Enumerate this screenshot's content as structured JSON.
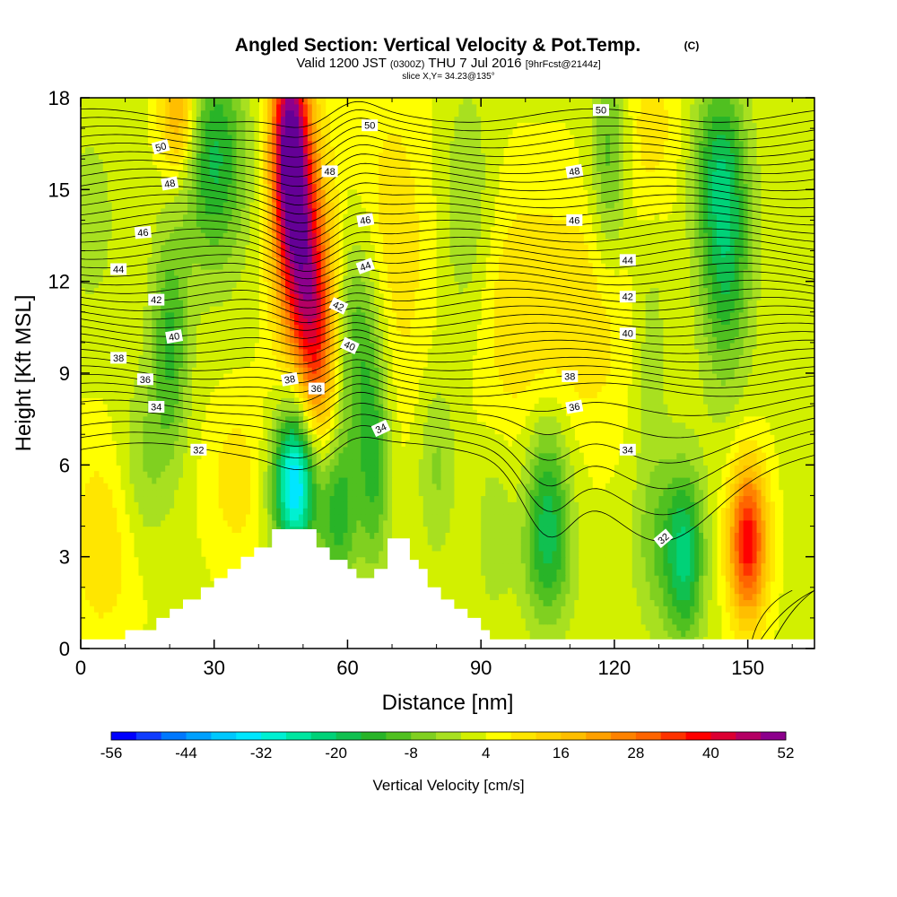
{
  "header": {
    "title": "Angled Section: Vertical Velocity & Pot.Temp.",
    "copyright": "(C)",
    "valid_prefix": "Valid 1200 JST",
    "utc": "(0300Z)",
    "valid_date": "THU 7 Jul 2016",
    "forecast": "[9hrFcst@2144z]",
    "slice": "slice X,Y= 34.23@135°"
  },
  "chart_data": {
    "type": "heatmap",
    "xlabel": "Distance [nm]",
    "ylabel": "Height [Kft MSL]",
    "xlim": [
      0,
      165
    ],
    "ylim": [
      0,
      18
    ],
    "xticks": [
      "0",
      "30",
      "60",
      "90",
      "120",
      "150"
    ],
    "yticks": [
      "0",
      "3",
      "6",
      "9",
      "12",
      "15",
      "18"
    ],
    "colorbar": {
      "label": "Vertical Velocity [cm/s]",
      "ticks": [
        "-56",
        "-44",
        "-32",
        "-20",
        "-8",
        "4",
        "16",
        "28",
        "40",
        "52"
      ],
      "range": [
        -56,
        52
      ],
      "step": 4,
      "colors": [
        "#0000ff",
        "#0f3cff",
        "#0078ff",
        "#00a0ff",
        "#00c8ff",
        "#00e6ff",
        "#00f0d2",
        "#00e6a0",
        "#00d278",
        "#10c050",
        "#28b428",
        "#50c020",
        "#80d020",
        "#a8e020",
        "#d2f000",
        "#ffff00",
        "#ffe600",
        "#ffd200",
        "#ffbe00",
        "#ffa000",
        "#ff8200",
        "#ff6400",
        "#ff3200",
        "#ff0000",
        "#dc0032",
        "#b40064",
        "#8c008c",
        "#640096"
      ]
    },
    "terrain": [
      [
        0,
        0.3
      ],
      [
        10,
        0.3
      ],
      [
        10,
        0.6
      ],
      [
        17,
        0.6
      ],
      [
        17,
        1.0
      ],
      [
        20,
        1.0
      ],
      [
        20,
        1.3
      ],
      [
        23,
        1.3
      ],
      [
        23,
        1.6
      ],
      [
        27,
        1.6
      ],
      [
        27,
        2.0
      ],
      [
        30,
        2.0
      ],
      [
        30,
        2.3
      ],
      [
        33,
        2.3
      ],
      [
        33,
        2.6
      ],
      [
        36,
        2.6
      ],
      [
        36,
        3.0
      ],
      [
        39,
        3.0
      ],
      [
        39,
        3.3
      ],
      [
        43,
        3.3
      ],
      [
        43,
        3.9
      ],
      [
        53,
        3.9
      ],
      [
        53,
        3.3
      ],
      [
        56,
        3.3
      ],
      [
        56,
        2.9
      ],
      [
        60,
        2.9
      ],
      [
        60,
        2.6
      ],
      [
        62,
        2.6
      ],
      [
        62,
        2.3
      ],
      [
        66,
        2.3
      ],
      [
        66,
        2.6
      ],
      [
        69,
        2.6
      ],
      [
        69,
        3.6
      ],
      [
        74,
        3.6
      ],
      [
        74,
        2.9
      ],
      [
        76,
        2.9
      ],
      [
        76,
        2.6
      ],
      [
        78,
        2.6
      ],
      [
        78,
        2.0
      ],
      [
        81,
        2.0
      ],
      [
        81,
        1.6
      ],
      [
        84,
        1.6
      ],
      [
        84,
        1.3
      ],
      [
        87,
        1.3
      ],
      [
        87,
        1.0
      ],
      [
        90,
        1.0
      ],
      [
        90,
        0.6
      ],
      [
        92,
        0.6
      ],
      [
        92,
        0.3
      ],
      [
        165,
        0.3
      ]
    ],
    "velocity_features": [
      {
        "x": 47,
        "y": 16.5,
        "value": 48,
        "sx": 3,
        "sy": 2.5
      },
      {
        "x": 50,
        "y": 12.5,
        "value": 36,
        "sx": 4,
        "sy": 3
      },
      {
        "x": 53,
        "y": 9.5,
        "value": 22,
        "sx": 3.5,
        "sy": 2.5
      },
      {
        "x": 22,
        "y": 17.5,
        "value": 20,
        "sx": 3,
        "sy": 1.5
      },
      {
        "x": 150,
        "y": 3.5,
        "value": 36,
        "sx": 3,
        "sy": 1.8
      },
      {
        "x": 70,
        "y": 13,
        "value": 8,
        "sx": 6,
        "sy": 4
      },
      {
        "x": 98,
        "y": 11,
        "value": 8,
        "sx": 8,
        "sy": 3
      },
      {
        "x": 115,
        "y": 11,
        "value": 7,
        "sx": 8,
        "sy": 3
      },
      {
        "x": 5,
        "y": 3.5,
        "value": 8,
        "sx": 6,
        "sy": 2.5
      },
      {
        "x": 35,
        "y": 5.5,
        "value": 7,
        "sx": 5,
        "sy": 2
      },
      {
        "x": 128,
        "y": 17,
        "value": 7,
        "sx": 5,
        "sy": 2
      },
      {
        "x": 48,
        "y": 5.3,
        "value": -34,
        "sx": 3.5,
        "sy": 1.6
      },
      {
        "x": 49,
        "y": 7.5,
        "value": -14,
        "sx": 3,
        "sy": 2.5
      },
      {
        "x": 58,
        "y": 4.5,
        "value": -18,
        "sx": 3,
        "sy": 1.8
      },
      {
        "x": 66,
        "y": 6,
        "value": -16,
        "sx": 2.5,
        "sy": 2.5
      },
      {
        "x": 62,
        "y": 10,
        "value": -16,
        "sx": 4,
        "sy": 2.5
      },
      {
        "x": 30,
        "y": 16,
        "value": -20,
        "sx": 5,
        "sy": 2.5
      },
      {
        "x": 20,
        "y": 10,
        "value": -16,
        "sx": 3,
        "sy": 2.5
      },
      {
        "x": 14,
        "y": 6,
        "value": -8,
        "sx": 4,
        "sy": 2
      },
      {
        "x": 105,
        "y": 5,
        "value": -18,
        "sx": 3.5,
        "sy": 2
      },
      {
        "x": 105,
        "y": 2.5,
        "value": -10,
        "sx": 4,
        "sy": 1.5
      },
      {
        "x": 136,
        "y": 3,
        "value": -22,
        "sx": 3,
        "sy": 2
      },
      {
        "x": 130,
        "y": 3.5,
        "value": -10,
        "sx": 4,
        "sy": 2
      },
      {
        "x": 145,
        "y": 13,
        "value": -20,
        "sx": 4,
        "sy": 3
      },
      {
        "x": 143,
        "y": 16,
        "value": -12,
        "sx": 4,
        "sy": 2
      },
      {
        "x": 119,
        "y": 16,
        "value": -14,
        "sx": 3,
        "sy": 2.5
      },
      {
        "x": 87,
        "y": 14,
        "value": -8,
        "sx": 4,
        "sy": 3
      },
      {
        "x": 80,
        "y": 6,
        "value": -8,
        "sx": 3,
        "sy": 2
      },
      {
        "x": 93,
        "y": 4,
        "value": -6,
        "sx": 3,
        "sy": 2
      },
      {
        "x": 2,
        "y": 14,
        "value": -6,
        "sx": 4,
        "sy": 2
      },
      {
        "x": 128,
        "y": 10,
        "value": -6,
        "sx": 3,
        "sy": 3
      }
    ],
    "theta_contours": {
      "start": 32,
      "end": 51,
      "step": 0.5
    },
    "theta_labels": [
      {
        "text": "50",
        "x": 18,
        "y": 16.4,
        "angle": -15
      },
      {
        "text": "48",
        "x": 20,
        "y": 15.2,
        "angle": -10
      },
      {
        "text": "46",
        "x": 14,
        "y": 13.6,
        "angle": -5
      },
      {
        "text": "44",
        "x": 8.5,
        "y": 12.4,
        "angle": 0
      },
      {
        "text": "42",
        "x": 17,
        "y": 11.4,
        "angle": 0
      },
      {
        "text": "40",
        "x": 21,
        "y": 10.2,
        "angle": -10
      },
      {
        "text": "38",
        "x": 8.5,
        "y": 9.5,
        "angle": 0
      },
      {
        "text": "36",
        "x": 14.5,
        "y": 8.8,
        "angle": 0
      },
      {
        "text": "34",
        "x": 17,
        "y": 7.9,
        "angle": 0
      },
      {
        "text": "32",
        "x": 26.5,
        "y": 6.5,
        "angle": 0
      },
      {
        "text": "38",
        "x": 47,
        "y": 8.8,
        "angle": -10
      },
      {
        "text": "36",
        "x": 53,
        "y": 8.5,
        "angle": 0
      },
      {
        "text": "34",
        "x": 67.5,
        "y": 7.2,
        "angle": -25
      },
      {
        "text": "40",
        "x": 60.5,
        "y": 9.9,
        "angle": 25
      },
      {
        "text": "42",
        "x": 58,
        "y": 11.2,
        "angle": 25
      },
      {
        "text": "44",
        "x": 64,
        "y": 12.5,
        "angle": -20
      },
      {
        "text": "46",
        "x": 64,
        "y": 14,
        "angle": -10
      },
      {
        "text": "48",
        "x": 56,
        "y": 15.6,
        "angle": 0
      },
      {
        "text": "50",
        "x": 65,
        "y": 17.1,
        "angle": 0
      },
      {
        "text": "50",
        "x": 117,
        "y": 17.6,
        "angle": 0
      },
      {
        "text": "48",
        "x": 111,
        "y": 15.6,
        "angle": -10
      },
      {
        "text": "46",
        "x": 111,
        "y": 14,
        "angle": 0
      },
      {
        "text": "44",
        "x": 123,
        "y": 12.7,
        "angle": 0
      },
      {
        "text": "42",
        "x": 123,
        "y": 11.5,
        "angle": 0
      },
      {
        "text": "40",
        "x": 123,
        "y": 10.3,
        "angle": 0
      },
      {
        "text": "38",
        "x": 110,
        "y": 8.9,
        "angle": 0
      },
      {
        "text": "36",
        "x": 111,
        "y": 7.9,
        "angle": -10
      },
      {
        "text": "34",
        "x": 123,
        "y": 6.5,
        "angle": 0
      },
      {
        "text": "32",
        "x": 131,
        "y": 3.6,
        "angle": -40
      }
    ]
  }
}
